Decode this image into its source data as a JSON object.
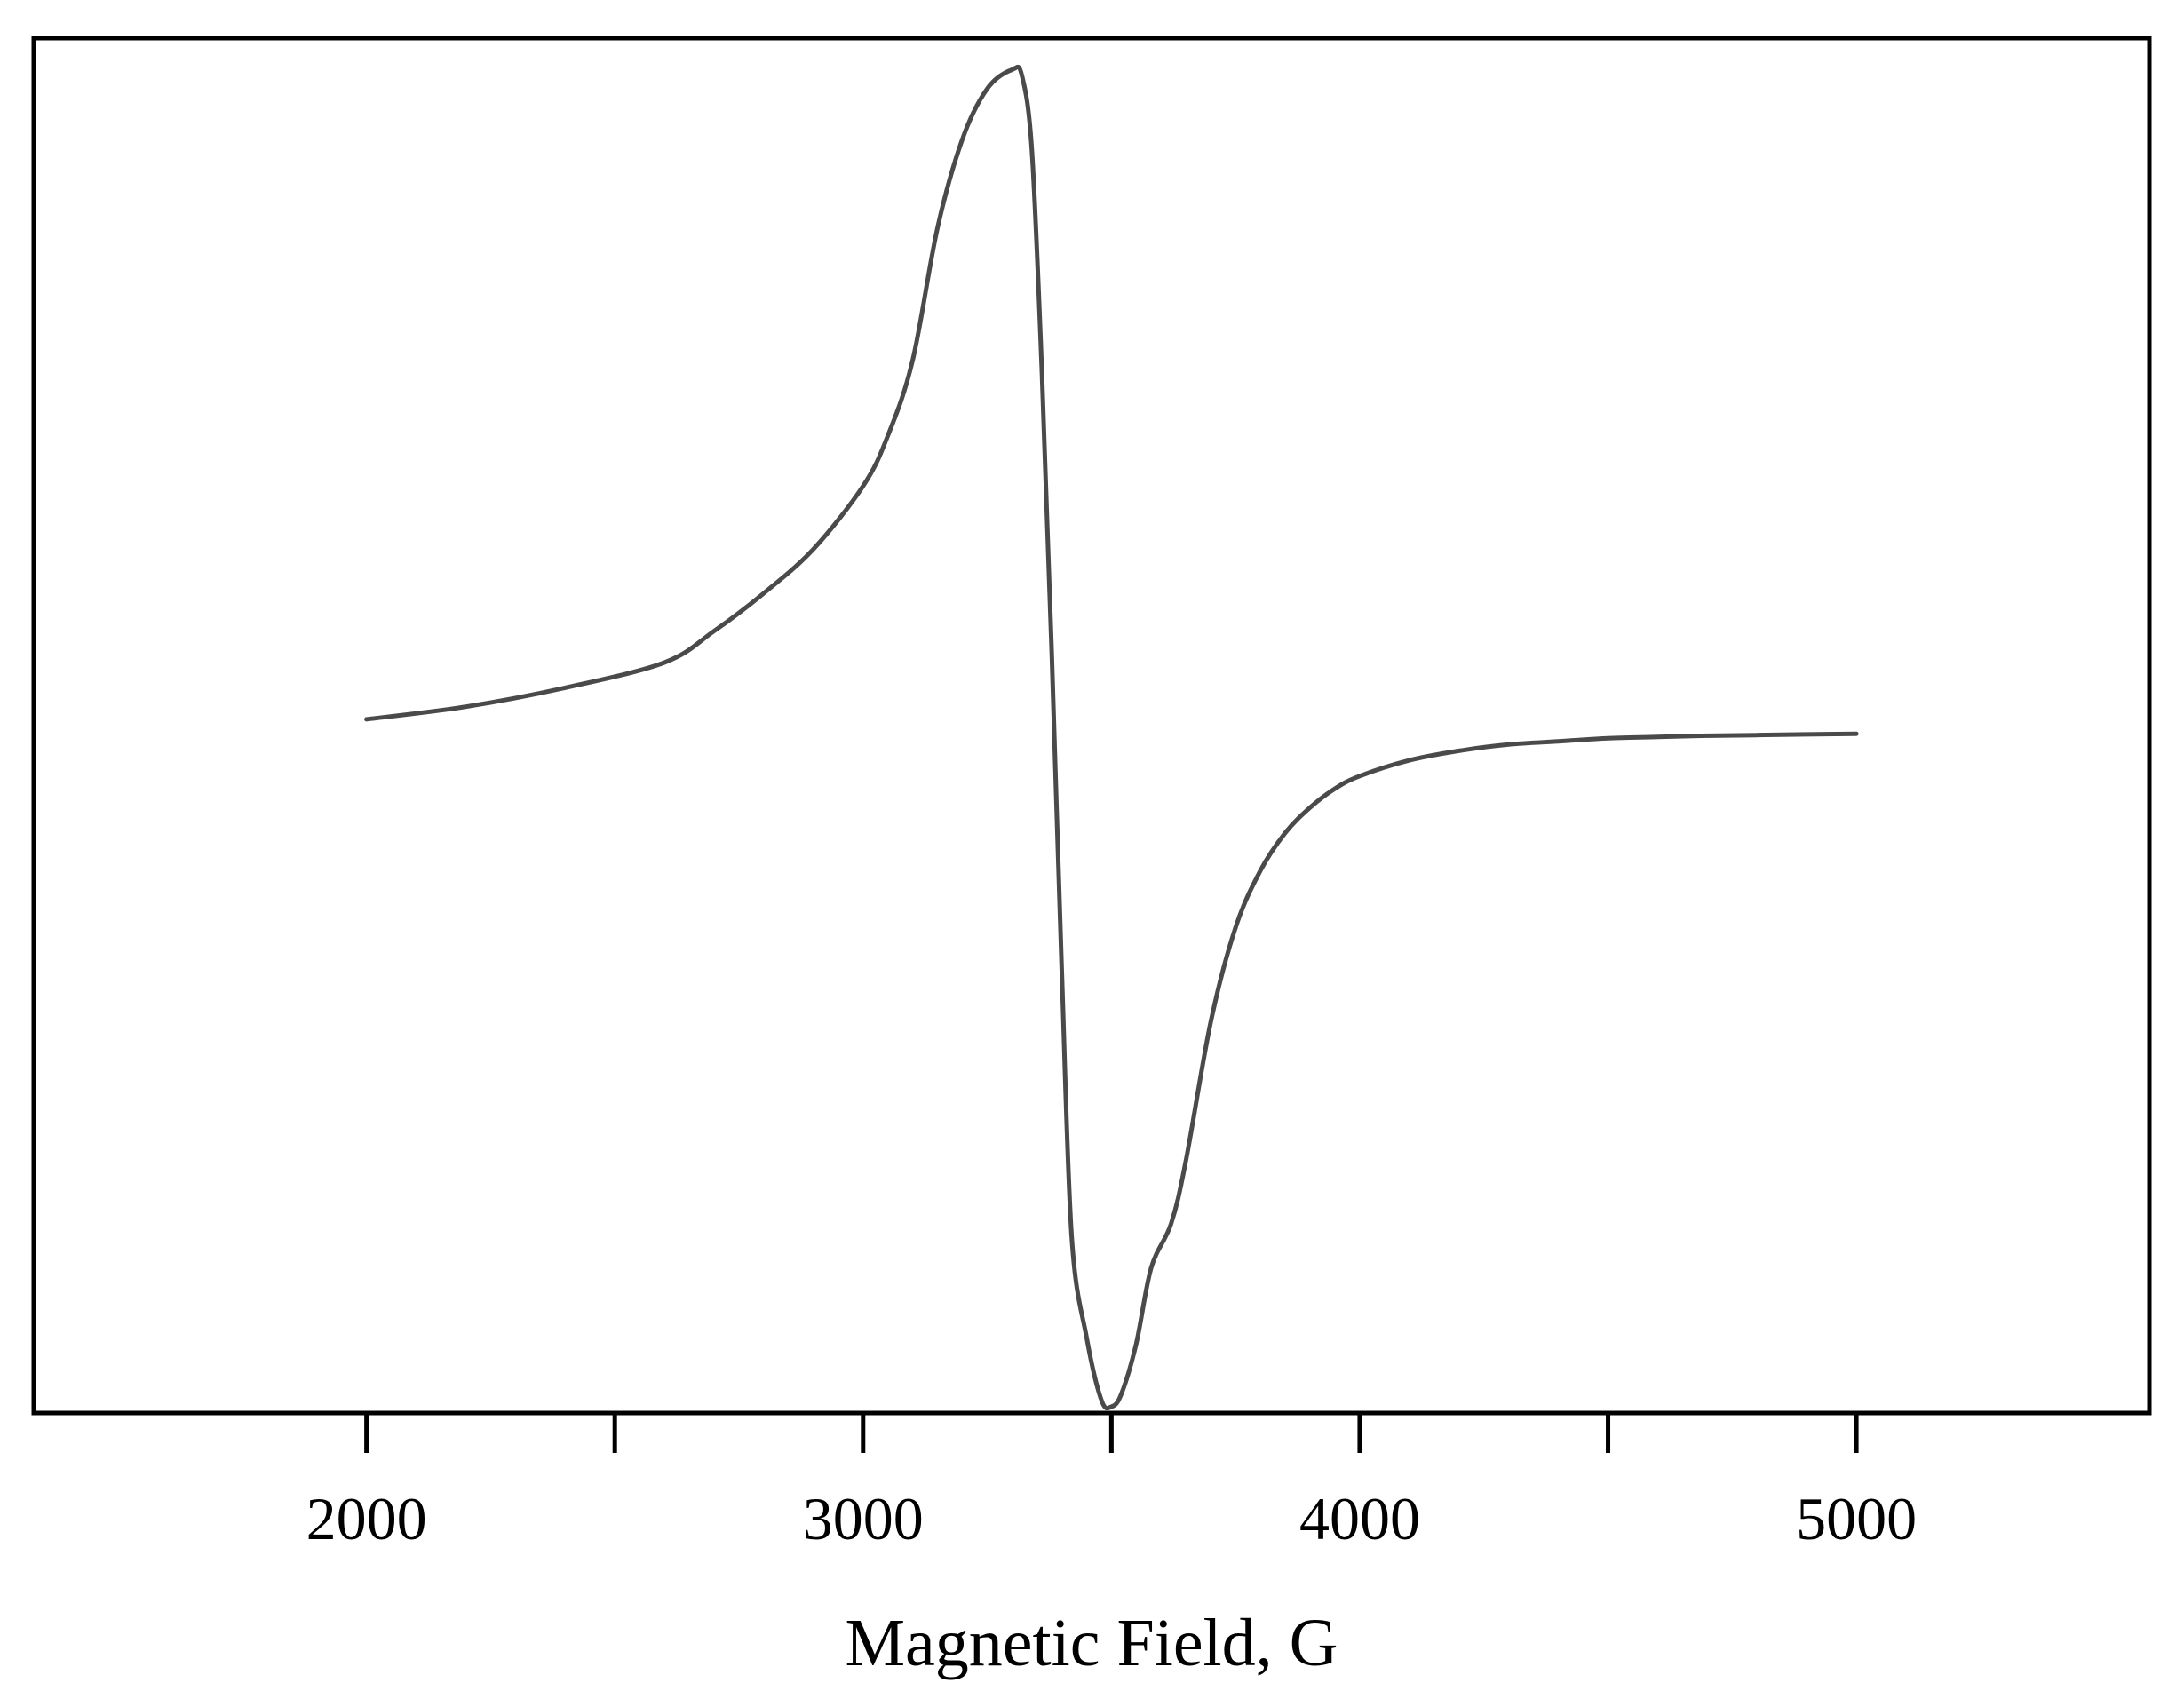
{
  "chart_data": {
    "type": "line",
    "title": "",
    "xlabel": "Magnetic Field, G",
    "ylabel": "",
    "xlim": [
      1330,
      5590
    ],
    "ylim": [
      -1.1,
      1.08
    ],
    "grid": false,
    "legend": "none",
    "x_ticks_major": [
      2000,
      3000,
      4000,
      5000
    ],
    "x_ticks_minor": [
      2500,
      3500,
      4500
    ],
    "x_tick_labels": [
      "2000",
      "3000",
      "4000",
      "5000"
    ],
    "series": [
      {
        "color": "#4a4a4a",
        "x": [
          2000,
          2200,
          2400,
          2600,
          2700,
          2800,
          2900,
          3000,
          3050,
          3100,
          3150,
          3200,
          3250,
          3300,
          3320,
          3340,
          3360,
          3380,
          3400,
          3420,
          3450,
          3480,
          3500,
          3520,
          3550,
          3580,
          3620,
          3650,
          3700,
          3750,
          3800,
          3850,
          3900,
          3950,
          4000,
          4100,
          4200,
          4300,
          4400,
          4500,
          4600,
          4700,
          4800,
          4900,
          5000
        ],
        "y": [
          0.0,
          0.02,
          0.05,
          0.09,
          0.14,
          0.2,
          0.27,
          0.37,
          0.45,
          0.57,
          0.78,
          0.92,
          1.0,
          1.03,
          1.02,
          0.9,
          0.55,
          0.1,
          -0.4,
          -0.82,
          -0.98,
          -1.08,
          -1.09,
          -1.07,
          -0.99,
          -0.87,
          -0.8,
          -0.7,
          -0.48,
          -0.33,
          -0.24,
          -0.18,
          -0.14,
          -0.11,
          -0.09,
          -0.065,
          -0.05,
          -0.04,
          -0.035,
          -0.03,
          -0.028,
          -0.026,
          -0.025,
          -0.024,
          -0.023
        ]
      }
    ]
  }
}
